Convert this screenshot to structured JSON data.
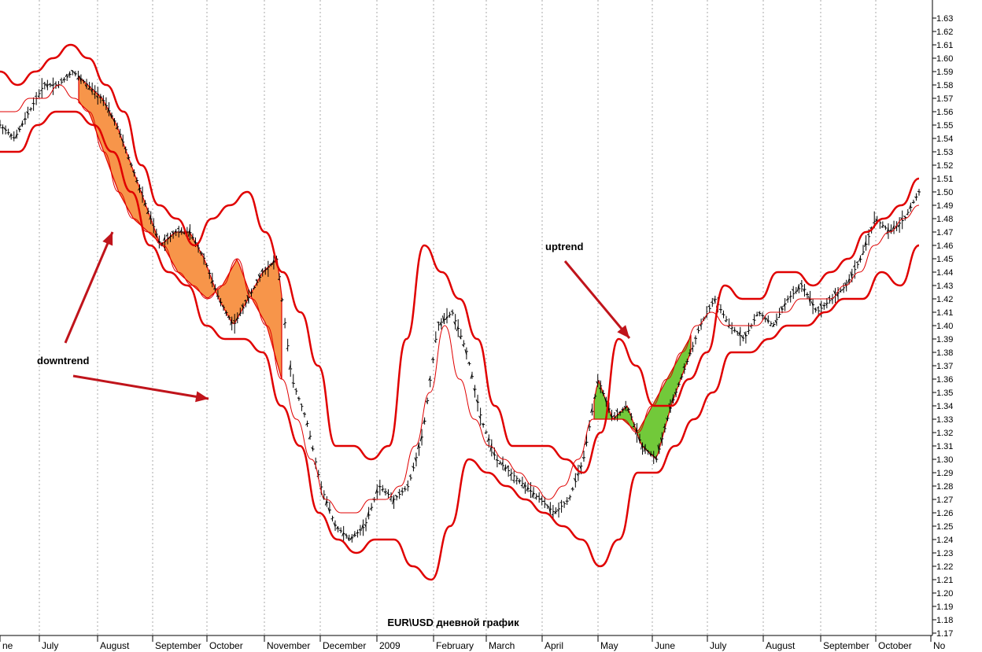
{
  "chart_data": {
    "type": "line",
    "title": "EUR\\USD дневной график",
    "xlabel": "",
    "ylabel": "",
    "ylim": [
      1.17,
      1.64
    ],
    "y_ticks": [
      1.17,
      1.18,
      1.19,
      1.2,
      1.21,
      1.22,
      1.23,
      1.24,
      1.25,
      1.26,
      1.27,
      1.28,
      1.29,
      1.3,
      1.31,
      1.32,
      1.33,
      1.34,
      1.35,
      1.36,
      1.37,
      1.38,
      1.39,
      1.4,
      1.41,
      1.42,
      1.43,
      1.44,
      1.45,
      1.46,
      1.47,
      1.48,
      1.49,
      1.5,
      1.51,
      1.52,
      1.53,
      1.54,
      1.55,
      1.56,
      1.57,
      1.58,
      1.59,
      1.6,
      1.61,
      1.62,
      1.63
    ],
    "x_ticks": [
      "ne",
      "July",
      "August",
      "September",
      "October",
      "November",
      "December",
      "2009",
      "February",
      "March",
      "April",
      "May",
      "June",
      "July",
      "August",
      "September",
      "October",
      "No"
    ],
    "grid": "vertical dotted at month starts",
    "series": [
      {
        "values": [
          1.55,
          1.54,
          1.56,
          1.58,
          1.58,
          1.59,
          1.58,
          1.57,
          1.55,
          1.52,
          1.49,
          1.46,
          1.47,
          1.47,
          1.45,
          1.42,
          1.4,
          1.42,
          1.44,
          1.45,
          1.36,
          1.33,
          1.28,
          1.25,
          1.24,
          1.25,
          1.28,
          1.27,
          1.28,
          1.32,
          1.4,
          1.41,
          1.38,
          1.33,
          1.3,
          1.29,
          1.28,
          1.27,
          1.26,
          1.27,
          1.3,
          1.36,
          1.33,
          1.34,
          1.31,
          1.3,
          1.34,
          1.37,
          1.4,
          1.42,
          1.4,
          1.39,
          1.41,
          1.4,
          1.42,
          1.43,
          1.41,
          1.42,
          1.43,
          1.45,
          1.48,
          1.47,
          1.48,
          1.5
        ]
      },
      {
        "values": [
          1.56,
          1.56,
          1.57,
          1.57,
          1.58,
          1.57,
          1.56,
          1.53,
          1.5,
          1.48,
          1.47,
          1.46,
          1.44,
          1.43,
          1.42,
          1.43,
          1.45,
          1.42,
          1.4,
          1.36,
          1.33,
          1.3,
          1.27,
          1.26,
          1.26,
          1.27,
          1.27,
          1.28,
          1.31,
          1.35,
          1.4,
          1.36,
          1.33,
          1.31,
          1.3,
          1.29,
          1.28,
          1.27,
          1.28,
          1.3,
          1.33,
          1.33,
          1.33,
          1.32,
          1.34,
          1.36,
          1.38,
          1.4,
          1.41,
          1.4,
          1.4,
          1.4,
          1.41,
          1.41,
          1.42,
          1.42,
          1.42,
          1.43,
          1.44,
          1.46,
          1.47,
          1.48,
          1.49
        ]
      },
      {
        "values": [
          1.59,
          1.58,
          1.59,
          1.6,
          1.61,
          1.6,
          1.58,
          1.56,
          1.52,
          1.49,
          1.48,
          1.46,
          1.48,
          1.49,
          1.5,
          1.47,
          1.44,
          1.41,
          1.37,
          1.31,
          1.31,
          1.3,
          1.31,
          1.39,
          1.46,
          1.44,
          1.42,
          1.39,
          1.34,
          1.31,
          1.31,
          1.31,
          1.3,
          1.29,
          1.32,
          1.39,
          1.37,
          1.34,
          1.34,
          1.36,
          1.38,
          1.43,
          1.42,
          1.42,
          1.44,
          1.44,
          1.43,
          1.44,
          1.45,
          1.47,
          1.48,
          1.49,
          1.51
        ]
      },
      {
        "values": [
          1.53,
          1.53,
          1.55,
          1.56,
          1.56,
          1.55,
          1.53,
          1.5,
          1.46,
          1.44,
          1.43,
          1.4,
          1.39,
          1.39,
          1.38,
          1.34,
          1.31,
          1.26,
          1.24,
          1.23,
          1.24,
          1.24,
          1.22,
          1.21,
          1.25,
          1.3,
          1.29,
          1.28,
          1.27,
          1.26,
          1.25,
          1.24,
          1.22,
          1.24,
          1.29,
          1.29,
          1.31,
          1.33,
          1.35,
          1.38,
          1.38,
          1.39,
          1.4,
          1.4,
          1.41,
          1.42,
          1.42,
          1.44,
          1.43,
          1.46
        ]
      }
    ],
    "annotations": [
      {
        "text": "downtrend"
      },
      {
        "text": "uptrend"
      }
    ],
    "colors": {
      "bands": "#e00000",
      "middle": "#e00000",
      "price": "#000000",
      "down_fill": "#f7954a",
      "up_fill": "#72c93a",
      "arrow": "#c0141b",
      "grid": "#aaaaaa"
    }
  }
}
